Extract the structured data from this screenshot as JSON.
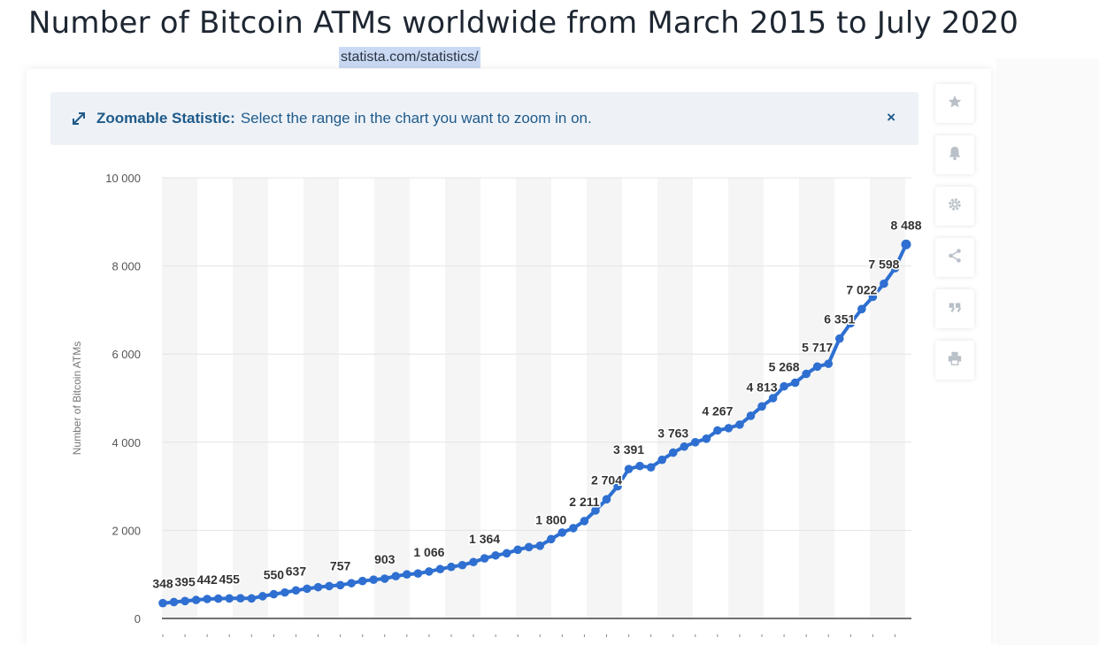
{
  "page": {
    "title": "Number of Bitcoin ATMs worldwide from March 2015 to July 2020",
    "source_url": "statista.com/statistics/"
  },
  "banner": {
    "label": "Zoomable Statistic:",
    "text": "Select the range in the chart you want to zoom in on.",
    "close": "×"
  },
  "toolbar": {
    "icons": [
      "star-icon",
      "bell-icon",
      "gear-icon",
      "share-icon",
      "quote-icon",
      "print-icon"
    ]
  },
  "colors": {
    "line": "#2e6fd1",
    "banner_text": "#1f5a8a",
    "grid": "#e4e4e4",
    "band": "#f5f5f5"
  },
  "chart_data": {
    "type": "line",
    "title": "",
    "xlabel": "",
    "ylabel": "Number of Bitcoin ATMs",
    "ylim": [
      0,
      10000
    ],
    "yticks": [
      0,
      2000,
      4000,
      6000,
      8000,
      10000
    ],
    "ytick_labels": [
      "0",
      "2 000",
      "4 000",
      "6 000",
      "8 000",
      "10 000"
    ],
    "grid": true,
    "series": [
      {
        "values": [
          348,
          372,
          395,
          420,
          442,
          450,
          455,
          458,
          455,
          505,
          550,
          590,
          637,
          675,
          710,
          735,
          757,
          800,
          850,
          880,
          903,
          960,
          1000,
          1020,
          1066,
          1120,
          1170,
          1210,
          1280,
          1364,
          1430,
          1480,
          1560,
          1620,
          1650,
          1800,
          1950,
          2050,
          2211,
          2450,
          2704,
          3000,
          3391,
          3460,
          3430,
          3600,
          3763,
          3900,
          4000,
          4080,
          4267,
          4320,
          4400,
          4600,
          4813,
          5000,
          5268,
          5350,
          5550,
          5717,
          5780,
          6351,
          6700,
          7022,
          7300,
          7598,
          7950,
          8488
        ]
      }
    ],
    "data_labels": [
      {
        "index": 0,
        "text": "348"
      },
      {
        "index": 2,
        "text": "395"
      },
      {
        "index": 4,
        "text": "442"
      },
      {
        "index": 6,
        "text": "455"
      },
      {
        "index": 10,
        "text": "550"
      },
      {
        "index": 12,
        "text": "637"
      },
      {
        "index": 16,
        "text": "757"
      },
      {
        "index": 20,
        "text": "903"
      },
      {
        "index": 24,
        "text": "1 066"
      },
      {
        "index": 29,
        "text": "1 364"
      },
      {
        "index": 35,
        "text": "1 800"
      },
      {
        "index": 38,
        "text": "2 211"
      },
      {
        "index": 40,
        "text": "2 704"
      },
      {
        "index": 42,
        "text": "3 391"
      },
      {
        "index": 46,
        "text": "3 763"
      },
      {
        "index": 50,
        "text": "4 267"
      },
      {
        "index": 54,
        "text": "4 813"
      },
      {
        "index": 56,
        "text": "5 268"
      },
      {
        "index": 59,
        "text": "5 717"
      },
      {
        "index": 61,
        "text": "6 351"
      },
      {
        "index": 63,
        "text": "7 022"
      },
      {
        "index": 65,
        "text": "7 598"
      },
      {
        "index": 67,
        "text": "8 488"
      }
    ]
  }
}
